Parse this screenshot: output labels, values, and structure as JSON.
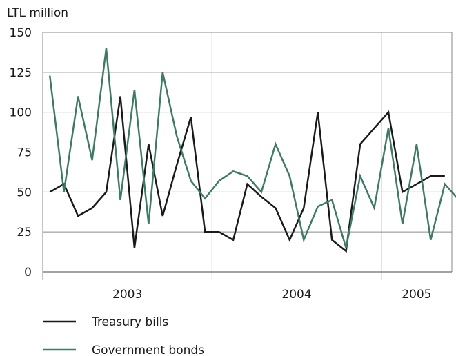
{
  "chart_data": {
    "type": "line",
    "ylabel": "LTL million",
    "ylim": [
      0,
      150
    ],
    "yticks": [
      "0",
      "25",
      "50",
      "75",
      "100",
      "125",
      "150"
    ],
    "ytick_values": [
      0,
      25,
      50,
      75,
      100,
      125,
      150
    ],
    "x_periods": [
      {
        "label": "2003",
        "start_month": 0,
        "end_month": 12
      },
      {
        "label": "2004",
        "start_month": 12,
        "end_month": 24
      },
      {
        "label": "2005",
        "start_month": 24,
        "end_month": 29
      }
    ],
    "x_range_months": [
      0,
      29
    ],
    "grid": true,
    "legend_position": "bottom-left",
    "colors": {
      "treasury": "#1a1a1a",
      "bonds": "#3f7a66"
    },
    "series": [
      {
        "name": "Treasury bills",
        "color": "#1a1a1a",
        "points": [
          [
            0.5,
            50
          ],
          [
            1.5,
            55
          ],
          [
            2.5,
            35
          ],
          [
            3.5,
            40
          ],
          [
            4.5,
            50
          ],
          [
            5.5,
            110
          ],
          [
            6.5,
            15
          ],
          [
            7.5,
            80
          ],
          [
            8.5,
            35
          ],
          [
            9.5,
            67
          ],
          [
            10.5,
            97
          ],
          [
            11.5,
            25
          ],
          [
            12.5,
            25
          ],
          [
            13.5,
            20
          ],
          [
            14.5,
            55
          ],
          [
            15.5,
            47
          ],
          [
            16.5,
            40
          ],
          [
            17.5,
            20
          ],
          [
            18.5,
            40
          ],
          [
            19.5,
            100
          ],
          [
            20.5,
            20
          ],
          [
            21.5,
            13
          ],
          [
            22.5,
            80
          ],
          [
            23.5,
            90
          ],
          [
            24.5,
            100
          ],
          [
            25.5,
            50
          ],
          [
            26.5,
            55
          ],
          [
            27.5,
            60
          ],
          [
            28.5,
            60
          ]
        ]
      },
      {
        "name": "Government bonds",
        "color": "#3f7a66",
        "points": [
          [
            0.5,
            123
          ],
          [
            1.5,
            50
          ],
          [
            2.5,
            110
          ],
          [
            3.5,
            70
          ],
          [
            4.5,
            140
          ],
          [
            5.5,
            45
          ],
          [
            6.5,
            114
          ],
          [
            7.5,
            30
          ],
          [
            8.5,
            125
          ],
          [
            9.5,
            85
          ],
          [
            10.5,
            57
          ],
          [
            11.5,
            46
          ],
          [
            12.5,
            57
          ],
          [
            13.5,
            63
          ],
          [
            14.5,
            60
          ],
          [
            15.5,
            50
          ],
          [
            16.5,
            80
          ],
          [
            17.5,
            60
          ],
          [
            18.5,
            20
          ],
          [
            19.5,
            41
          ],
          [
            20.5,
            45
          ],
          [
            21.5,
            15
          ],
          [
            22.5,
            60
          ],
          [
            23.5,
            40
          ],
          [
            24.5,
            90
          ],
          [
            25.5,
            30
          ],
          [
            26.5,
            80
          ],
          [
            27.5,
            20
          ],
          [
            28.5,
            55
          ],
          [
            29.5,
            45
          ]
        ]
      }
    ]
  }
}
